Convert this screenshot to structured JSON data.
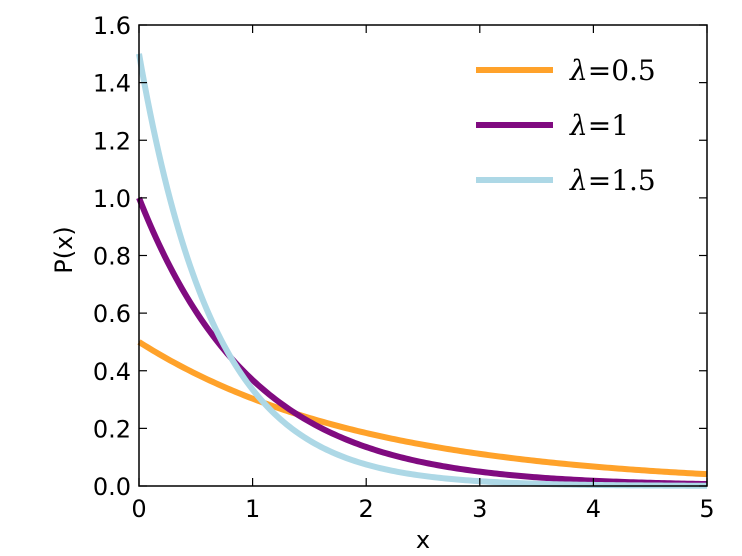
{
  "chart_data": {
    "type": "line",
    "xlabel": "x",
    "ylabel": "P(x)",
    "xlim": [
      0,
      5
    ],
    "ylim": [
      0,
      1.6
    ],
    "x_ticks": [
      "0",
      "1",
      "2",
      "3",
      "4",
      "5"
    ],
    "y_ticks": [
      "0.0",
      "0.2",
      "0.4",
      "0.6",
      "0.8",
      "1.0",
      "1.2",
      "1.4",
      "1.6"
    ],
    "grid": false,
    "legend_position": "top-right",
    "x": [
      0,
      0.5,
      1,
      1.5,
      2,
      2.5,
      3,
      3.5,
      4,
      4.5,
      5
    ],
    "series": [
      {
        "name": "λ=0.5",
        "lambda_symbol": "λ",
        "lambda_value": "=0.5",
        "color": "#ffa22a",
        "values": [
          0.5,
          0.389,
          0.303,
          0.236,
          0.184,
          0.143,
          0.112,
          0.087,
          0.068,
          0.053,
          0.041
        ]
      },
      {
        "name": "λ=1",
        "lambda_symbol": "λ",
        "lambda_value": "=1",
        "color": "#800b80",
        "values": [
          1.0,
          0.607,
          0.368,
          0.223,
          0.135,
          0.082,
          0.05,
          0.03,
          0.018,
          0.011,
          0.007
        ]
      },
      {
        "name": "λ=1.5",
        "lambda_symbol": "λ",
        "lambda_value": "=1.5",
        "color": "#add8e6",
        "values": [
          1.5,
          0.709,
          0.335,
          0.158,
          0.075,
          0.035,
          0.017,
          0.008,
          0.004,
          0.002,
          0.001
        ]
      }
    ]
  }
}
